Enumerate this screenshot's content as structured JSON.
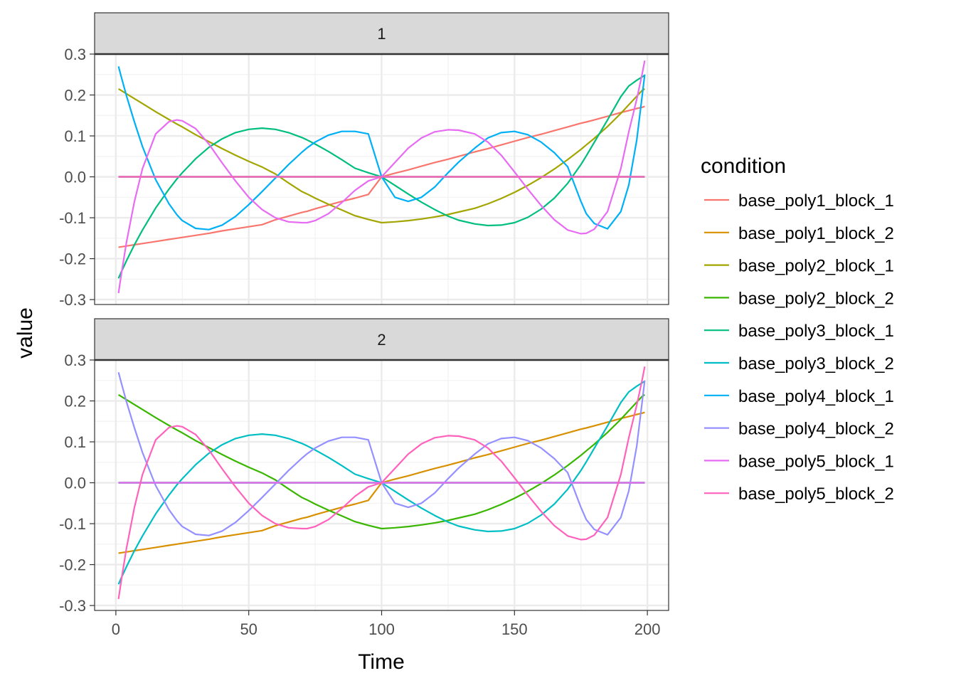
{
  "chart_data": {
    "type": "line",
    "xlabel": "Time",
    "ylabel": "value",
    "xlim": [
      -8,
      208
    ],
    "ylim": [
      -0.312,
      0.3
    ],
    "x_ticks": [
      0,
      50,
      100,
      150,
      200
    ],
    "x_tick_labels": [
      "0",
      "50",
      "100",
      "150",
      "200"
    ],
    "y_ticks": [
      0.3,
      0.2,
      0.1,
      0.0,
      -0.1,
      -0.2,
      -0.3
    ],
    "y_tick_labels": [
      "0.3",
      "0.2",
      "0.1",
      "0.0",
      "-0.1",
      "-0.2",
      "-0.3"
    ],
    "grid": true,
    "facets": [
      "1",
      "2"
    ],
    "legend": {
      "title": "condition",
      "placement": "right",
      "entries": [
        {
          "label": "base_poly1_block_1",
          "color": "#F8766D"
        },
        {
          "label": "base_poly1_block_2",
          "color": "#D89000"
        },
        {
          "label": "base_poly2_block_1",
          "color": "#A3A500"
        },
        {
          "label": "base_poly2_block_2",
          "color": "#39B600"
        },
        {
          "label": "base_poly3_block_1",
          "color": "#00BF7D"
        },
        {
          "label": "base_poly3_block_2",
          "color": "#00BFC4"
        },
        {
          "label": "base_poly4_block_1",
          "color": "#00B0F6"
        },
        {
          "label": "base_poly4_block_2",
          "color": "#9590FF"
        },
        {
          "label": "base_poly5_block_1",
          "color": "#E76BF3"
        },
        {
          "label": "base_poly5_block_2",
          "color": "#FF62BC"
        }
      ]
    },
    "x": [
      1,
      2,
      4,
      7,
      10,
      15,
      20,
      23,
      25,
      30,
      35,
      40,
      45,
      50,
      55,
      60,
      65,
      70,
      72,
      75,
      80,
      85,
      90,
      95,
      100,
      105,
      110,
      115,
      120,
      125,
      129,
      135,
      140,
      145,
      150,
      155,
      160,
      165,
      170,
      175,
      177,
      180,
      185,
      190,
      193,
      196,
      198,
      199
    ],
    "curves": {
      "poly1": [
        -0.172,
        -0.171,
        -0.169,
        -0.166,
        -0.163,
        -0.158,
        -0.153,
        -0.15,
        -0.148,
        -0.143,
        -0.138,
        -0.132,
        -0.127,
        -0.122,
        -0.117,
        -0.105,
        -0.096,
        -0.087,
        -0.084,
        -0.078,
        -0.069,
        -0.06,
        -0.052,
        -0.043,
        0.0,
        0.009,
        0.017,
        0.026,
        0.035,
        0.043,
        0.05,
        0.061,
        0.069,
        0.078,
        0.087,
        0.096,
        0.104,
        0.113,
        0.122,
        0.131,
        0.134,
        0.139,
        0.148,
        0.157,
        0.162,
        0.167,
        0.17,
        0.172
      ],
      "poly2": [
        0.215,
        0.211,
        0.203,
        0.191,
        0.179,
        0.159,
        0.14,
        0.129,
        0.122,
        0.103,
        0.086,
        0.069,
        0.053,
        0.038,
        0.024,
        0.007,
        -0.015,
        -0.036,
        -0.042,
        -0.052,
        -0.067,
        -0.081,
        -0.095,
        -0.104,
        -0.112,
        -0.11,
        -0.107,
        -0.103,
        -0.098,
        -0.092,
        -0.086,
        -0.077,
        -0.066,
        -0.053,
        -0.038,
        -0.021,
        -0.002,
        0.019,
        0.042,
        0.067,
        0.078,
        0.094,
        0.123,
        0.155,
        0.176,
        0.197,
        0.211,
        0.215
      ],
      "poly3": [
        -0.248,
        -0.233,
        -0.205,
        -0.166,
        -0.13,
        -0.076,
        -0.03,
        -0.005,
        0.01,
        0.044,
        0.072,
        0.093,
        0.108,
        0.116,
        0.119,
        0.116,
        0.108,
        0.096,
        0.09,
        0.08,
        0.062,
        0.042,
        0.021,
        0.01,
        0.0,
        -0.021,
        -0.042,
        -0.062,
        -0.08,
        -0.096,
        -0.106,
        -0.115,
        -0.119,
        -0.118,
        -0.112,
        -0.099,
        -0.079,
        -0.052,
        -0.016,
        0.03,
        0.051,
        0.084,
        0.139,
        0.196,
        0.222,
        0.236,
        0.244,
        0.248
      ],
      "poly4": [
        0.27,
        0.245,
        0.198,
        0.134,
        0.074,
        -0.007,
        -0.066,
        -0.093,
        -0.107,
        -0.126,
        -0.129,
        -0.118,
        -0.097,
        -0.068,
        -0.036,
        -0.003,
        0.03,
        0.06,
        0.071,
        0.085,
        0.102,
        0.111,
        0.111,
        0.105,
        0.0,
        -0.05,
        -0.06,
        -0.05,
        -0.025,
        0.01,
        0.036,
        0.07,
        0.095,
        0.108,
        0.111,
        0.103,
        0.085,
        0.059,
        0.025,
        -0.06,
        -0.09,
        -0.114,
        -0.127,
        -0.085,
        -0.02,
        0.09,
        0.195,
        0.25
      ],
      "poly5": [
        -0.284,
        -0.24,
        -0.16,
        -0.06,
        0.02,
        0.105,
        0.135,
        0.139,
        0.137,
        0.118,
        0.08,
        0.034,
        -0.01,
        -0.05,
        -0.08,
        -0.1,
        -0.11,
        -0.112,
        -0.112,
        -0.107,
        -0.09,
        -0.063,
        -0.033,
        -0.01,
        0.0,
        0.035,
        0.07,
        0.095,
        0.11,
        0.115,
        0.114,
        0.105,
        0.085,
        0.053,
        0.012,
        -0.03,
        -0.07,
        -0.105,
        -0.13,
        -0.139,
        -0.138,
        -0.128,
        -0.085,
        0.02,
        0.11,
        0.19,
        0.25,
        0.284
      ]
    },
    "panels": [
      {
        "facet": "1",
        "series": [
          {
            "name": "base_poly1_block_1",
            "color": "#F8766D",
            "curve": "poly1"
          },
          {
            "name": "base_poly1_block_2",
            "color": "#D89000",
            "curve": "zero"
          },
          {
            "name": "base_poly2_block_1",
            "color": "#A3A500",
            "curve": "poly2"
          },
          {
            "name": "base_poly2_block_2",
            "color": "#39B600",
            "curve": "zero"
          },
          {
            "name": "base_poly3_block_1",
            "color": "#00BF7D",
            "curve": "poly3"
          },
          {
            "name": "base_poly3_block_2",
            "color": "#00BFC4",
            "curve": "zero"
          },
          {
            "name": "base_poly4_block_1",
            "color": "#00B0F6",
            "curve": "poly4"
          },
          {
            "name": "base_poly4_block_2",
            "color": "#9590FF",
            "curve": "zero"
          },
          {
            "name": "base_poly5_block_1",
            "color": "#E76BF3",
            "curve": "poly5"
          },
          {
            "name": "base_poly5_block_2",
            "color": "#FF62BC",
            "curve": "zero"
          }
        ]
      },
      {
        "facet": "2",
        "series": [
          {
            "name": "base_poly1_block_1",
            "color": "#F8766D",
            "curve": "zero"
          },
          {
            "name": "base_poly1_block_2",
            "color": "#D89000",
            "curve": "poly1"
          },
          {
            "name": "base_poly2_block_1",
            "color": "#A3A500",
            "curve": "zero"
          },
          {
            "name": "base_poly2_block_2",
            "color": "#39B600",
            "curve": "poly2"
          },
          {
            "name": "base_poly3_block_1",
            "color": "#00BF7D",
            "curve": "zero"
          },
          {
            "name": "base_poly3_block_2",
            "color": "#00BFC4",
            "curve": "poly3"
          },
          {
            "name": "base_poly4_block_1",
            "color": "#00B0F6",
            "curve": "zero"
          },
          {
            "name": "base_poly4_block_2",
            "color": "#9590FF",
            "curve": "poly4"
          },
          {
            "name": "base_poly5_block_1",
            "color": "#E76BF3",
            "curve": "zero"
          },
          {
            "name": "base_poly5_block_2",
            "color": "#FF62BC",
            "curve": "poly5"
          }
        ]
      }
    ]
  }
}
